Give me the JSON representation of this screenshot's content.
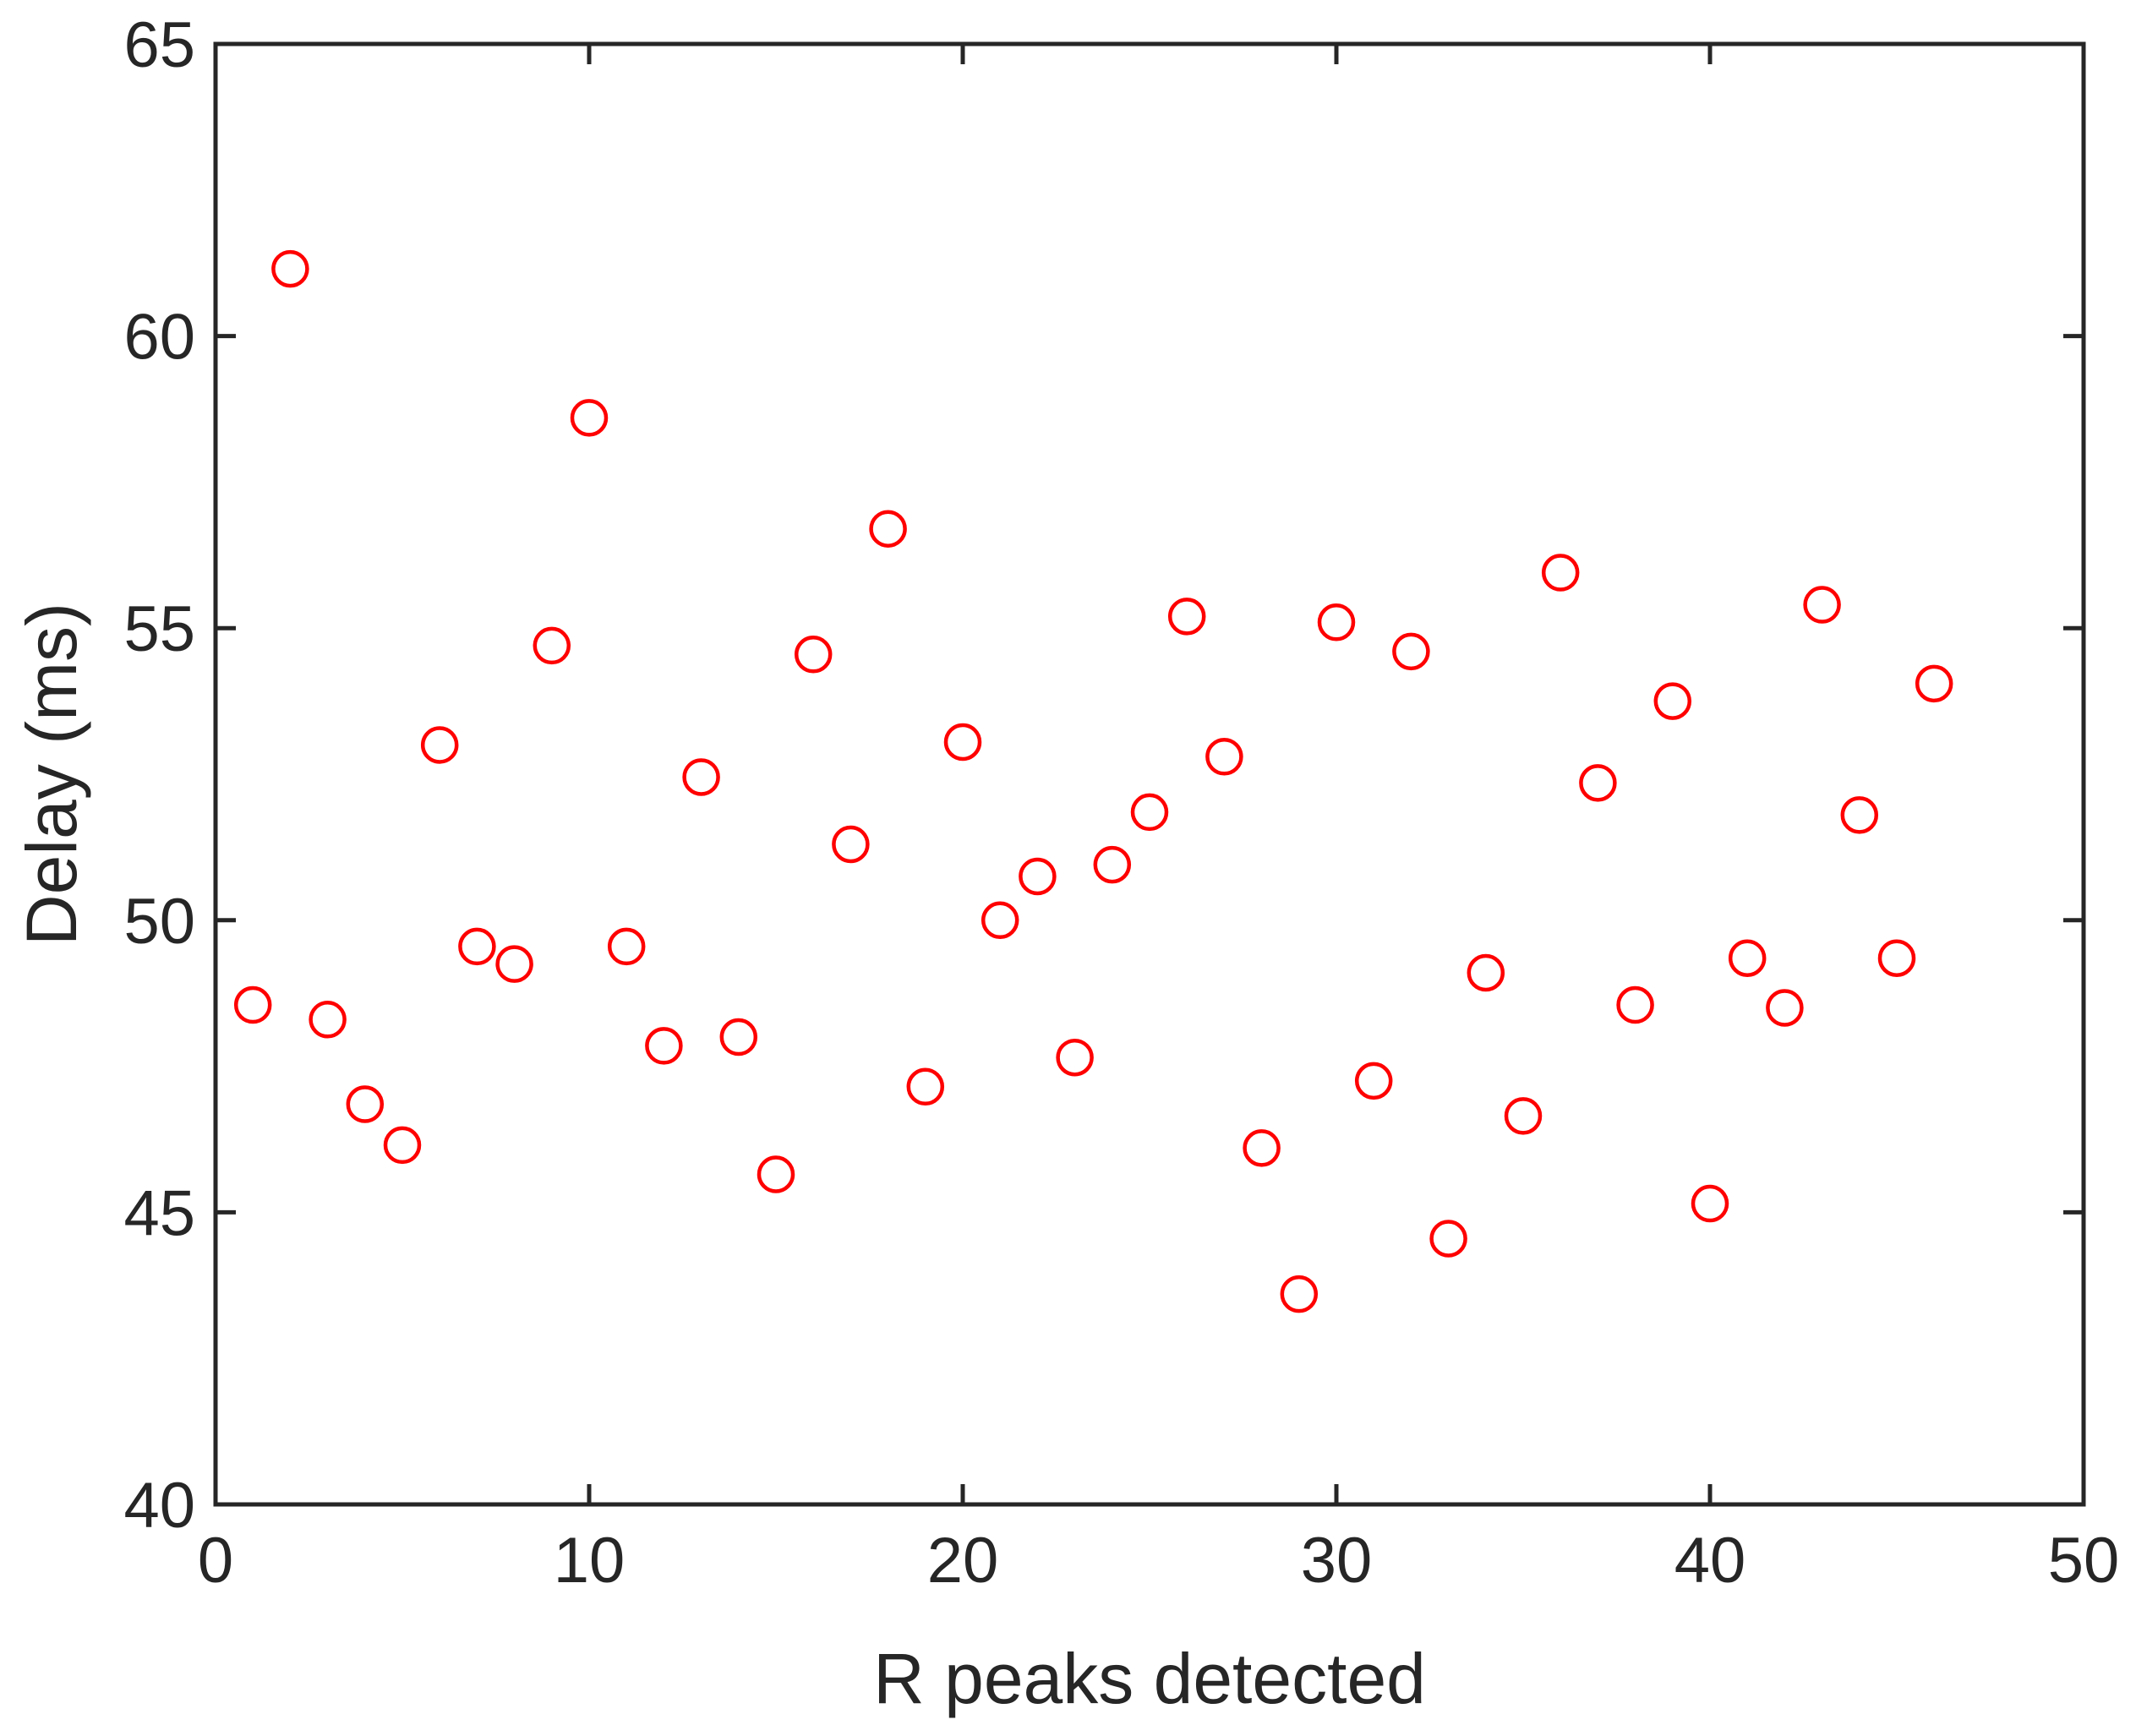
{
  "chart_data": {
    "type": "scatter",
    "title": "",
    "xlabel": "R peaks detected",
    "ylabel": "Delay (ms)",
    "xlim": [
      0,
      50
    ],
    "ylim": [
      40,
      65
    ],
    "xticks": [
      0,
      10,
      20,
      30,
      40,
      50
    ],
    "yticks": [
      40,
      45,
      50,
      55,
      60,
      65
    ],
    "grid": false,
    "legend": "none",
    "marker": "open-circle",
    "marker_color": "#ff0000",
    "axis_color": "#262626",
    "series": [
      {
        "x": [
          1,
          2,
          3,
          4,
          5,
          6,
          7,
          8,
          9,
          10,
          11,
          12,
          13,
          14,
          15,
          16,
          17,
          18,
          19,
          20,
          21,
          22,
          23,
          24,
          25,
          26,
          27,
          28,
          29,
          30,
          31,
          32,
          33,
          34,
          35,
          36,
          37,
          38,
          39,
          40,
          41,
          42,
          43,
          44,
          45,
          46
        ],
        "y": [
          48.55,
          61.15,
          48.3,
          46.85,
          46.15,
          53.0,
          49.55,
          49.25,
          54.7,
          58.6,
          49.55,
          47.85,
          52.45,
          48.0,
          45.65,
          54.55,
          51.3,
          56.7,
          47.15,
          53.05,
          50.0,
          50.75,
          47.65,
          50.95,
          51.85,
          55.2,
          52.8,
          46.1,
          43.6,
          55.1,
          47.25,
          54.6,
          44.55,
          49.1,
          46.65,
          55.95,
          52.35,
          48.55,
          53.75,
          45.15,
          49.35,
          48.5,
          55.4,
          51.8,
          49.35,
          54.05
        ]
      }
    ]
  }
}
